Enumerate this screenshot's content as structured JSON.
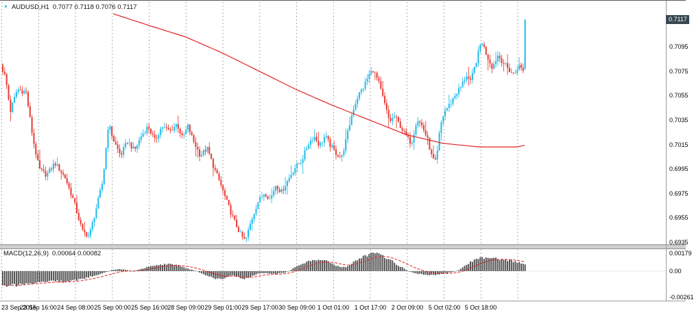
{
  "header": {
    "symbol": "AUDUSD,H1",
    "ohlc": "0.7077 0.7118 0.7076 0.7117"
  },
  "price_axis": {
    "current": "0.7117",
    "ticks": [
      "0.7095",
      "0.7075",
      "0.7055",
      "0.7035",
      "0.7015",
      "0.6995",
      "0.6975",
      "0.6955",
      "0.6935"
    ]
  },
  "macd_panel": {
    "label": "MACD(12,26,9)",
    "values": "0.00064 0.00082",
    "ticks": [
      "0.00179",
      "0.00",
      "-0.00261"
    ]
  },
  "x_labels": [
    "23 Sep 2015",
    "23 Sep 16:00",
    "24 Sep 08:00",
    "25 Sep 00:00",
    "25 Sep 16:00",
    "28 Sep 09:00",
    "29 Sep 01:00",
    "29 Sep 17:00",
    "30 Sep 09:00",
    "1 Oct 01:00",
    "1 Oct 17:00",
    "2 Oct 09:00",
    "5 Oct 02:00",
    "5 Oct 18:00"
  ],
  "colors": {
    "bull": "#26bceb",
    "bear": "#e8403a",
    "ma_line": "#e02020",
    "signal_line": "#e02020",
    "histogram": "#4d4d4d",
    "grid": "#999999",
    "axis_text": "#000000",
    "price_tag_bg": "#37474f",
    "price_tag_text": "#ffffff",
    "separator": "#cfcfcf"
  },
  "chart_data": {
    "type": "candlestick",
    "symbol": "AUDUSD",
    "timeframe": "H1",
    "title": "AUDUSD,H1",
    "last_bar": {
      "open": 0.7077,
      "high": 0.7118,
      "low": 0.7076,
      "close": 0.7117
    },
    "y_axis": {
      "min": 0.693,
      "max": 0.7122,
      "tick_step": 0.002,
      "ticks": [
        0.7095,
        0.7075,
        0.7055,
        0.7035,
        0.7015,
        0.6995,
        0.6975,
        0.6955,
        0.6935
      ],
      "current_price": 0.7117
    },
    "overlays": [
      {
        "name": "moving-average",
        "color": "#e02020"
      }
    ],
    "price_path_anchors": [
      [
        0,
        0.7082
      ],
      [
        8,
        0.707
      ],
      [
        15,
        0.7042
      ],
      [
        25,
        0.706
      ],
      [
        38,
        0.7058
      ],
      [
        48,
        0.702
      ],
      [
        57,
        0.6995
      ],
      [
        68,
        0.699
      ],
      [
        80,
        0.7
      ],
      [
        95,
        0.6988
      ],
      [
        108,
        0.6968
      ],
      [
        120,
        0.6944
      ],
      [
        130,
        0.694
      ],
      [
        140,
        0.6962
      ],
      [
        150,
        0.6985
      ],
      [
        158,
        0.7032
      ],
      [
        166,
        0.7018
      ],
      [
        176,
        0.7006
      ],
      [
        186,
        0.7018
      ],
      [
        196,
        0.701
      ],
      [
        206,
        0.7022
      ],
      [
        216,
        0.703
      ],
      [
        226,
        0.7018
      ],
      [
        236,
        0.703
      ],
      [
        248,
        0.7026
      ],
      [
        258,
        0.7032
      ],
      [
        266,
        0.702
      ],
      [
        274,
        0.703
      ],
      [
        282,
        0.7018
      ],
      [
        292,
        0.7006
      ],
      [
        302,
        0.7012
      ],
      [
        312,
        0.6996
      ],
      [
        322,
        0.6982
      ],
      [
        332,
        0.6966
      ],
      [
        342,
        0.6952
      ],
      [
        352,
        0.694
      ],
      [
        358,
        0.6936
      ],
      [
        366,
        0.6952
      ],
      [
        376,
        0.6968
      ],
      [
        386,
        0.6976
      ],
      [
        394,
        0.697
      ],
      [
        402,
        0.6982
      ],
      [
        410,
        0.6976
      ],
      [
        420,
        0.6986
      ],
      [
        430,
        0.6996
      ],
      [
        440,
        0.7002
      ],
      [
        450,
        0.7016
      ],
      [
        458,
        0.7022
      ],
      [
        466,
        0.7014
      ],
      [
        474,
        0.7022
      ],
      [
        482,
        0.7014
      ],
      [
        490,
        0.7008
      ],
      [
        498,
        0.7004
      ],
      [
        506,
        0.7022
      ],
      [
        514,
        0.7042
      ],
      [
        522,
        0.7055
      ],
      [
        530,
        0.7062
      ],
      [
        538,
        0.7072
      ],
      [
        544,
        0.7076
      ],
      [
        552,
        0.7066
      ],
      [
        560,
        0.705
      ],
      [
        568,
        0.7034
      ],
      [
        576,
        0.7038
      ],
      [
        584,
        0.703
      ],
      [
        592,
        0.7022
      ],
      [
        600,
        0.7016
      ],
      [
        608,
        0.7036
      ],
      [
        616,
        0.703
      ],
      [
        624,
        0.7018
      ],
      [
        630,
        0.7004
      ],
      [
        636,
        0.7
      ],
      [
        642,
        0.703
      ],
      [
        648,
        0.7042
      ],
      [
        656,
        0.7048
      ],
      [
        664,
        0.7056
      ],
      [
        672,
        0.7062
      ],
      [
        680,
        0.7072
      ],
      [
        686,
        0.7066
      ],
      [
        694,
        0.7082
      ],
      [
        702,
        0.71
      ],
      [
        710,
        0.7088
      ],
      [
        718,
        0.7078
      ],
      [
        726,
        0.7088
      ],
      [
        734,
        0.7082
      ],
      [
        742,
        0.7076
      ],
      [
        750,
        0.7072
      ],
      [
        756,
        0.708
      ],
      [
        762,
        0.7076
      ],
      [
        766,
        0.7077
      ]
    ],
    "ma_anchors": [
      [
        165,
        0.7122
      ],
      [
        220,
        0.7112
      ],
      [
        271,
        0.7103
      ],
      [
        324,
        0.709
      ],
      [
        378,
        0.7075
      ],
      [
        432,
        0.706
      ],
      [
        485,
        0.7047
      ],
      [
        539,
        0.7035
      ],
      [
        593,
        0.7023
      ],
      [
        646,
        0.7016
      ],
      [
        700,
        0.7013
      ],
      [
        754,
        0.7013
      ],
      [
        770,
        0.7015
      ]
    ],
    "macd": {
      "name": "MACD",
      "params": [
        12,
        26,
        9
      ],
      "main_value": 0.00064,
      "signal_value": 0.00082,
      "axis": {
        "max": 0.00179,
        "zero": 0.0,
        "min": -0.00261
      },
      "hist_anchors": [
        [
          0,
          -0.0013
        ],
        [
          10,
          -0.0015
        ],
        [
          25,
          -0.0014
        ],
        [
          40,
          -0.0012
        ],
        [
          60,
          -0.0011
        ],
        [
          80,
          -0.001
        ],
        [
          95,
          -0.0011
        ],
        [
          110,
          -0.0009
        ],
        [
          125,
          -0.0007
        ],
        [
          140,
          -0.0004
        ],
        [
          155,
          -0.0001
        ],
        [
          163,
          0.0001
        ],
        [
          175,
          0.0002
        ],
        [
          185,
          0.0001
        ],
        [
          195,
          0
        ],
        [
          205,
          0.0002
        ],
        [
          215,
          0.0004
        ],
        [
          228,
          0.0006
        ],
        [
          240,
          0.0007
        ],
        [
          252,
          0.0007
        ],
        [
          262,
          0.0005
        ],
        [
          272,
          0.0003
        ],
        [
          282,
          0.0001
        ],
        [
          290,
          -0.0001
        ],
        [
          300,
          -0.0004
        ],
        [
          312,
          -0.0007
        ],
        [
          322,
          -0.0008
        ],
        [
          330,
          -0.0006
        ],
        [
          338,
          -0.0004
        ],
        [
          346,
          -0.0006
        ],
        [
          354,
          -0.0008
        ],
        [
          362,
          -0.0007
        ],
        [
          370,
          -0.0004
        ],
        [
          380,
          -0.0002
        ],
        [
          390,
          -0.0002
        ],
        [
          400,
          -0.0003
        ],
        [
          410,
          -0.0002
        ],
        [
          418,
          -0.0001
        ],
        [
          426,
          0.0002
        ],
        [
          436,
          0.0006
        ],
        [
          446,
          0.0009
        ],
        [
          456,
          0.0011
        ],
        [
          466,
          0.0012
        ],
        [
          476,
          0.001
        ],
        [
          486,
          0.0007
        ],
        [
          496,
          0.0004
        ],
        [
          504,
          0.0004
        ],
        [
          512,
          0.0007
        ],
        [
          520,
          0.0011
        ],
        [
          530,
          0.0014
        ],
        [
          540,
          0.0017
        ],
        [
          548,
          0.0018
        ],
        [
          556,
          0.0016
        ],
        [
          564,
          0.0013
        ],
        [
          572,
          0.001
        ],
        [
          580,
          0.0006
        ],
        [
          588,
          0.0003
        ],
        [
          596,
          0
        ],
        [
          604,
          -0.0002
        ],
        [
          612,
          -0.0003
        ],
        [
          622,
          -0.0004
        ],
        [
          632,
          -0.0004
        ],
        [
          642,
          -0.0003
        ],
        [
          652,
          -0.0002
        ],
        [
          660,
          -0.0001
        ],
        [
          668,
          0.0001
        ],
        [
          676,
          0.0004
        ],
        [
          684,
          0.0008
        ],
        [
          692,
          0.0011
        ],
        [
          700,
          0.0013
        ],
        [
          708,
          0.0014
        ],
        [
          716,
          0.0014
        ],
        [
          724,
          0.0013
        ],
        [
          732,
          0.0012
        ],
        [
          740,
          0.0011
        ],
        [
          748,
          0.001
        ],
        [
          756,
          0.0009
        ],
        [
          764,
          0.00066
        ],
        [
          770,
          0.00064
        ]
      ]
    }
  }
}
